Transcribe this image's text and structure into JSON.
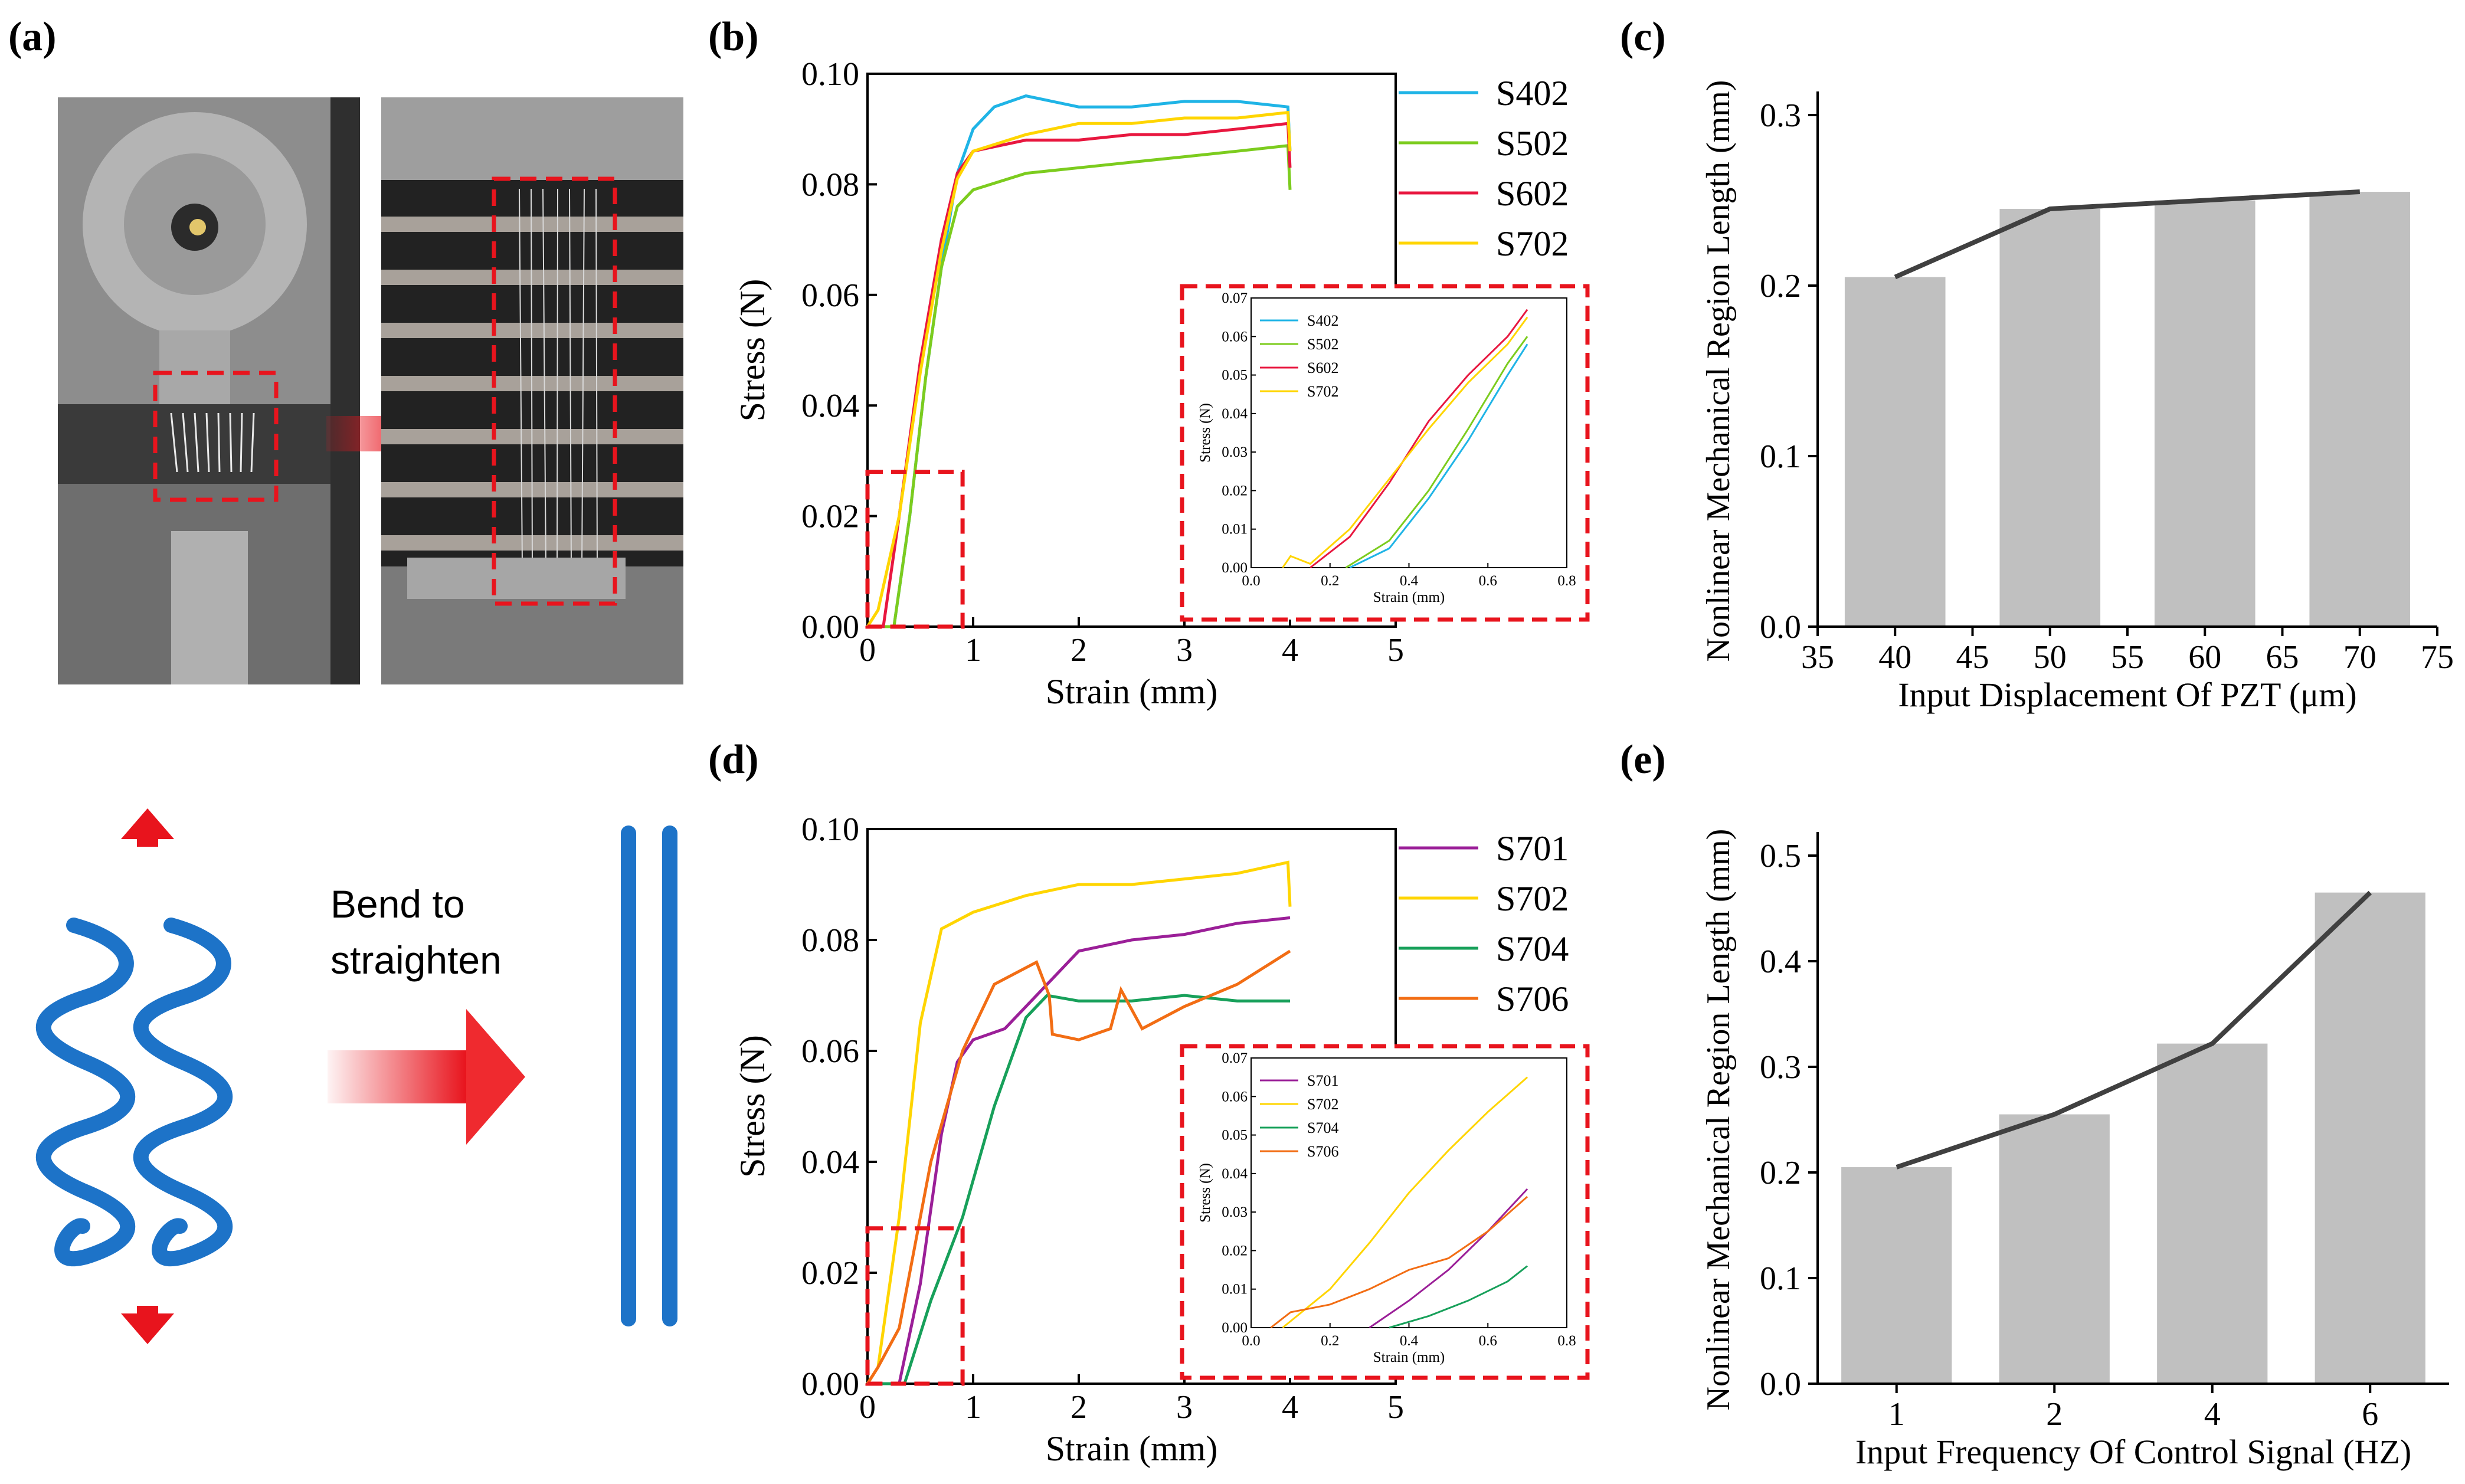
{
  "panel_labels": {
    "a": "(a)",
    "b": "(b)",
    "c": "(c)",
    "d": "(d)",
    "e": "(e)"
  },
  "schematic": {
    "caption_line1": "Bend to",
    "caption_line2": "straighten"
  },
  "colors": {
    "S402": "#1fb4e6",
    "S502": "#7ccc1e",
    "S602": "#e8173f",
    "S702": "#ffd500",
    "S701": "#9b1f98",
    "S704": "#17a05a",
    "S706": "#f26d14",
    "bar": "#c0c0c0",
    "trend": "#404040",
    "highlight": "#e8141d",
    "fiber": "#1d73c8"
  },
  "chart_data": [
    {
      "id": "b",
      "type": "line",
      "xlabel": "Strain (mm)",
      "ylabel": "Stress (N)",
      "xlim": [
        0,
        5
      ],
      "ylim": [
        0,
        0.1
      ],
      "xticks": [
        "0",
        "1",
        "2",
        "3",
        "4",
        "5"
      ],
      "yticks": [
        "0.00",
        "0.02",
        "0.04",
        "0.06",
        "0.08",
        "0.10"
      ],
      "legend_position": "right",
      "series": [
        {
          "name": "S402",
          "points": [
            [
              0,
              0
            ],
            [
              0.25,
              0
            ],
            [
              0.4,
              0.02
            ],
            [
              0.55,
              0.045
            ],
            [
              0.7,
              0.065
            ],
            [
              0.85,
              0.082
            ],
            [
              1.0,
              0.09
            ],
            [
              1.2,
              0.094
            ],
            [
              1.5,
              0.096
            ],
            [
              2.0,
              0.094
            ],
            [
              2.5,
              0.094
            ],
            [
              3.0,
              0.095
            ],
            [
              3.5,
              0.095
            ],
            [
              3.98,
              0.094
            ],
            [
              4.0,
              0.086
            ]
          ]
        },
        {
          "name": "S502",
          "points": [
            [
              0,
              0
            ],
            [
              0.25,
              0
            ],
            [
              0.4,
              0.02
            ],
            [
              0.55,
              0.045
            ],
            [
              0.7,
              0.065
            ],
            [
              0.85,
              0.076
            ],
            [
              1.0,
              0.079
            ],
            [
              1.5,
              0.082
            ],
            [
              2.0,
              0.083
            ],
            [
              2.5,
              0.084
            ],
            [
              3.0,
              0.085
            ],
            [
              3.5,
              0.086
            ],
            [
              3.98,
              0.087
            ],
            [
              4.0,
              0.079
            ]
          ]
        },
        {
          "name": "S602",
          "points": [
            [
              0,
              0
            ],
            [
              0.15,
              0
            ],
            [
              0.3,
              0.02
            ],
            [
              0.5,
              0.048
            ],
            [
              0.7,
              0.07
            ],
            [
              0.85,
              0.082
            ],
            [
              1.0,
              0.086
            ],
            [
              1.5,
              0.088
            ],
            [
              2.0,
              0.088
            ],
            [
              2.5,
              0.089
            ],
            [
              3.0,
              0.089
            ],
            [
              3.5,
              0.09
            ],
            [
              3.98,
              0.091
            ],
            [
              4.0,
              0.083
            ]
          ]
        },
        {
          "name": "S702",
          "points": [
            [
              0,
              0
            ],
            [
              0.1,
              0.003
            ],
            [
              0.3,
              0.02
            ],
            [
              0.5,
              0.046
            ],
            [
              0.7,
              0.068
            ],
            [
              0.85,
              0.081
            ],
            [
              1.0,
              0.086
            ],
            [
              1.5,
              0.089
            ],
            [
              2.0,
              0.091
            ],
            [
              2.5,
              0.091
            ],
            [
              3.0,
              0.092
            ],
            [
              3.5,
              0.092
            ],
            [
              3.98,
              0.093
            ],
            [
              4.0,
              0.086
            ]
          ]
        }
      ],
      "highlight_box": {
        "x": [
          0,
          0.9
        ],
        "y": [
          0,
          0.028
        ]
      },
      "inset": {
        "xlabel": "Strain (mm)",
        "ylabel": "Stress (N)",
        "xlim": [
          0,
          0.8
        ],
        "ylim": [
          0,
          0.07
        ],
        "xticks": [
          "0.0",
          "0.2",
          "0.4",
          "0.6",
          "0.8"
        ],
        "yticks": [
          "0.00",
          "0.01",
          "0.02",
          "0.03",
          "0.04",
          "0.05",
          "0.06",
          "0.07"
        ],
        "series": [
          {
            "name": "S402",
            "points": [
              [
                0.25,
                0
              ],
              [
                0.35,
                0.005
              ],
              [
                0.45,
                0.018
              ],
              [
                0.55,
                0.033
              ],
              [
                0.65,
                0.05
              ],
              [
                0.7,
                0.058
              ]
            ]
          },
          {
            "name": "S502",
            "points": [
              [
                0.24,
                0
              ],
              [
                0.35,
                0.007
              ],
              [
                0.45,
                0.02
              ],
              [
                0.55,
                0.036
              ],
              [
                0.65,
                0.053
              ],
              [
                0.7,
                0.06
              ]
            ]
          },
          {
            "name": "S602",
            "points": [
              [
                0.15,
                0
              ],
              [
                0.25,
                0.008
              ],
              [
                0.35,
                0.022
              ],
              [
                0.45,
                0.038
              ],
              [
                0.55,
                0.05
              ],
              [
                0.65,
                0.06
              ],
              [
                0.7,
                0.067
              ]
            ]
          },
          {
            "name": "S702",
            "points": [
              [
                0.08,
                0
              ],
              [
                0.1,
                0.003
              ],
              [
                0.15,
                0.001
              ],
              [
                0.25,
                0.01
              ],
              [
                0.35,
                0.023
              ],
              [
                0.45,
                0.036
              ],
              [
                0.55,
                0.048
              ],
              [
                0.65,
                0.058
              ],
              [
                0.7,
                0.065
              ]
            ]
          }
        ]
      }
    },
    {
      "id": "c",
      "type": "bar",
      "xlabel": "Input Displacement Of PZT (μm)",
      "ylabel": "Nonlinear Mechanical Region Length (mm)",
      "xlim": [
        35,
        75
      ],
      "ylim": [
        0,
        0.3
      ],
      "xticks": [
        "35",
        "40",
        "45",
        "50",
        "55",
        "60",
        "65",
        "70",
        "75"
      ],
      "yticks": [
        "0.0",
        "0.1",
        "0.2",
        "0.3"
      ],
      "x": [
        40,
        50,
        60,
        70
      ],
      "values": [
        0.205,
        0.245,
        0.25,
        0.255
      ],
      "trend_line": true
    },
    {
      "id": "d",
      "type": "line",
      "xlabel": "Strain (mm)",
      "ylabel": "Stress (N)",
      "xlim": [
        0,
        5
      ],
      "ylim": [
        0,
        0.1
      ],
      "xticks": [
        "0",
        "1",
        "2",
        "3",
        "4",
        "5"
      ],
      "yticks": [
        "0.00",
        "0.02",
        "0.04",
        "0.06",
        "0.08",
        "0.10"
      ],
      "legend_position": "right",
      "series": [
        {
          "name": "S701",
          "points": [
            [
              0,
              0
            ],
            [
              0.3,
              0
            ],
            [
              0.5,
              0.018
            ],
            [
              0.7,
              0.045
            ],
            [
              0.85,
              0.058
            ],
            [
              1.0,
              0.062
            ],
            [
              1.3,
              0.064
            ],
            [
              1.6,
              0.07
            ],
            [
              2.0,
              0.078
            ],
            [
              2.5,
              0.08
            ],
            [
              3.0,
              0.081
            ],
            [
              3.5,
              0.083
            ],
            [
              4.0,
              0.084
            ]
          ]
        },
        {
          "name": "S702",
          "points": [
            [
              0,
              0
            ],
            [
              0.1,
              0.003
            ],
            [
              0.3,
              0.03
            ],
            [
              0.5,
              0.065
            ],
            [
              0.7,
              0.082
            ],
            [
              1.0,
              0.085
            ],
            [
              1.5,
              0.088
            ],
            [
              2.0,
              0.09
            ],
            [
              2.5,
              0.09
            ],
            [
              3.0,
              0.091
            ],
            [
              3.5,
              0.092
            ],
            [
              3.98,
              0.094
            ],
            [
              4.0,
              0.086
            ]
          ]
        },
        {
          "name": "S704",
          "points": [
            [
              0,
              0
            ],
            [
              0.35,
              0
            ],
            [
              0.6,
              0.015
            ],
            [
              0.9,
              0.03
            ],
            [
              1.2,
              0.05
            ],
            [
              1.5,
              0.066
            ],
            [
              1.7,
              0.07
            ],
            [
              2.0,
              0.069
            ],
            [
              2.5,
              0.069
            ],
            [
              3.0,
              0.07
            ],
            [
              3.5,
              0.069
            ],
            [
              4.0,
              0.069
            ]
          ]
        },
        {
          "name": "S706",
          "points": [
            [
              0,
              0
            ],
            [
              0.1,
              0.003
            ],
            [
              0.3,
              0.01
            ],
            [
              0.6,
              0.04
            ],
            [
              0.9,
              0.06
            ],
            [
              1.2,
              0.072
            ],
            [
              1.6,
              0.076
            ],
            [
              1.72,
              0.07
            ],
            [
              1.75,
              0.063
            ],
            [
              2.0,
              0.062
            ],
            [
              2.3,
              0.064
            ],
            [
              2.4,
              0.071
            ],
            [
              2.6,
              0.064
            ],
            [
              3.0,
              0.068
            ],
            [
              3.5,
              0.072
            ],
            [
              4.0,
              0.078
            ]
          ]
        }
      ],
      "highlight_box": {
        "x": [
          0,
          0.9
        ],
        "y": [
          0,
          0.028
        ]
      },
      "inset": {
        "xlabel": "Strain (mm)",
        "ylabel": "Stress (N)",
        "xlim": [
          0,
          0.8
        ],
        "ylim": [
          0,
          0.07
        ],
        "xticks": [
          "0.0",
          "0.2",
          "0.4",
          "0.6",
          "0.8"
        ],
        "yticks": [
          "0.00",
          "0.01",
          "0.02",
          "0.03",
          "0.04",
          "0.05",
          "0.06",
          "0.07"
        ],
        "series": [
          {
            "name": "S701",
            "points": [
              [
                0.3,
                0
              ],
              [
                0.4,
                0.007
              ],
              [
                0.5,
                0.015
              ],
              [
                0.6,
                0.025
              ],
              [
                0.7,
                0.036
              ]
            ]
          },
          {
            "name": "S702",
            "points": [
              [
                0.08,
                0
              ],
              [
                0.2,
                0.01
              ],
              [
                0.3,
                0.022
              ],
              [
                0.4,
                0.035
              ],
              [
                0.5,
                0.046
              ],
              [
                0.6,
                0.056
              ],
              [
                0.7,
                0.065
              ]
            ]
          },
          {
            "name": "S704",
            "points": [
              [
                0.35,
                0
              ],
              [
                0.45,
                0.003
              ],
              [
                0.55,
                0.007
              ],
              [
                0.65,
                0.012
              ],
              [
                0.7,
                0.016
              ]
            ]
          },
          {
            "name": "S706",
            "points": [
              [
                0.05,
                0
              ],
              [
                0.1,
                0.004
              ],
              [
                0.2,
                0.006
              ],
              [
                0.3,
                0.01
              ],
              [
                0.4,
                0.015
              ],
              [
                0.5,
                0.018
              ],
              [
                0.6,
                0.025
              ],
              [
                0.7,
                0.034
              ]
            ]
          }
        ]
      }
    },
    {
      "id": "e",
      "type": "bar",
      "xlabel": "Input Frequency Of Control Signal (HZ)",
      "ylabel": "Nonlinear Mechanical Region Length (mm)",
      "ylim": [
        0,
        0.5
      ],
      "categories": [
        "1",
        "2",
        "4",
        "6"
      ],
      "yticks": [
        "0.0",
        "0.1",
        "0.2",
        "0.3",
        "0.4",
        "0.5"
      ],
      "values": [
        0.205,
        0.255,
        0.322,
        0.465
      ],
      "trend_line": true
    }
  ]
}
